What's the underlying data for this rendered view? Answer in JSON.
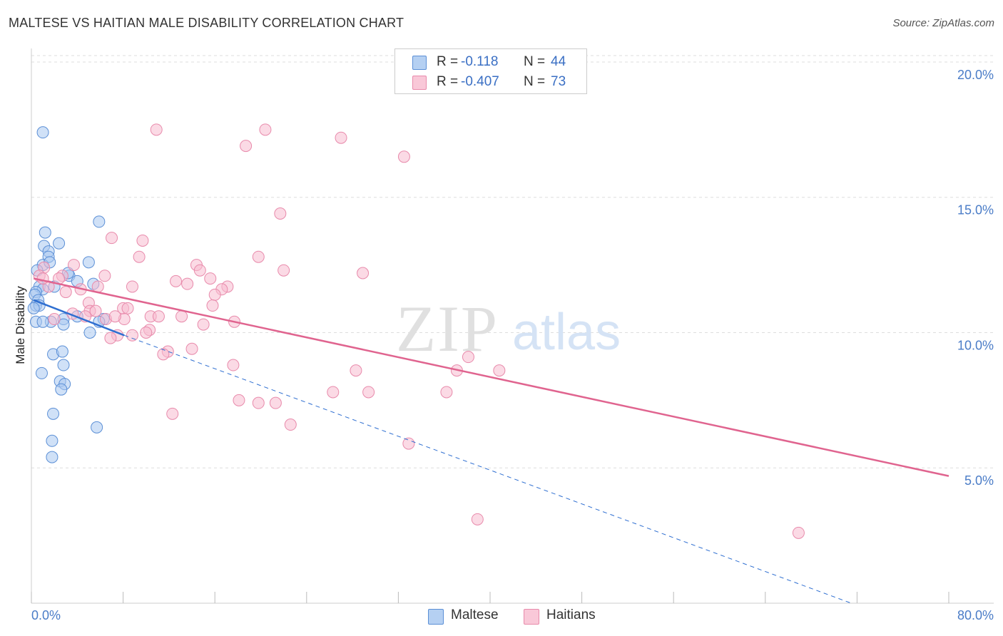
{
  "title": "MALTESE VS HAITIAN MALE DISABILITY CORRELATION CHART",
  "source": "Source: ZipAtlas.com",
  "watermark": {
    "zip": "ZIP",
    "atlas": "atlas"
  },
  "colors": {
    "maltese_fill": "#a9c8f0",
    "maltese_stroke": "#5b8fd6",
    "maltese_line": "#2f6fd1",
    "haitian_fill": "#f7bcd0",
    "haitian_stroke": "#e88aab",
    "haitian_line": "#e0648f",
    "tick_label": "#4a7cc7",
    "grid": "#dddddd"
  },
  "legend": {
    "maltese": {
      "r_label": "R =",
      "r_value": "-0.118",
      "n_label": "N =",
      "n_value": "44"
    },
    "haitian": {
      "r_label": "R =",
      "r_value": "-0.407",
      "n_label": "N =",
      "n_value": "73"
    }
  },
  "bottom_legend": {
    "maltese": "Maltese",
    "haitian": "Haitians"
  },
  "chart_data": {
    "type": "scatter",
    "title": "MALTESE VS HAITIAN MALE DISABILITY CORRELATION CHART",
    "xlabel": "",
    "ylabel": "Male Disability",
    "xlim": [
      0,
      80
    ],
    "ylim": [
      0,
      20.5
    ],
    "x_tick_labels": [
      "0.0%",
      "80.0%"
    ],
    "y_ticks": [
      5,
      10,
      15,
      20
    ],
    "y_tick_labels": [
      "5.0%",
      "10.0%",
      "15.0%",
      "20.0%"
    ],
    "grid": true,
    "series": [
      {
        "name": "Maltese",
        "points": [
          [
            1.0,
            17.4
          ],
          [
            5.9,
            14.1
          ],
          [
            1.2,
            13.7
          ],
          [
            1.1,
            13.2
          ],
          [
            2.4,
            13.3
          ],
          [
            1.5,
            13.0
          ],
          [
            1.5,
            12.8
          ],
          [
            1.0,
            12.5
          ],
          [
            5.0,
            12.6
          ],
          [
            0.5,
            12.3
          ],
          [
            1.6,
            12.6
          ],
          [
            3.3,
            12.1
          ],
          [
            4.0,
            11.9
          ],
          [
            5.4,
            11.8
          ],
          [
            0.7,
            11.7
          ],
          [
            2.0,
            11.7
          ],
          [
            1.0,
            11.6
          ],
          [
            0.4,
            11.5
          ],
          [
            0.3,
            11.4
          ],
          [
            0.6,
            11.2
          ],
          [
            0.4,
            11.0
          ],
          [
            0.7,
            11.0
          ],
          [
            0.2,
            10.9
          ],
          [
            2.8,
            10.5
          ],
          [
            6.3,
            10.5
          ],
          [
            1.7,
            10.4
          ],
          [
            5.9,
            10.4
          ],
          [
            0.4,
            10.4
          ],
          [
            1.0,
            10.4
          ],
          [
            2.8,
            10.3
          ],
          [
            5.1,
            10.0
          ],
          [
            1.9,
            9.2
          ],
          [
            2.7,
            9.3
          ],
          [
            0.9,
            8.5
          ],
          [
            2.8,
            8.8
          ],
          [
            2.5,
            8.2
          ],
          [
            2.9,
            8.1
          ],
          [
            2.6,
            7.9
          ],
          [
            1.9,
            7.0
          ],
          [
            5.7,
            6.5
          ],
          [
            1.8,
            6.0
          ],
          [
            1.8,
            5.4
          ],
          [
            4.0,
            10.6
          ],
          [
            3.2,
            12.2
          ]
        ],
        "trend": {
          "x1": 0.2,
          "y1": 11.2,
          "x2": 8.1,
          "y2": 9.9,
          "dashed_to_x": 71.5,
          "dashed_to_y": 0.0
        }
      },
      {
        "name": "Haitians",
        "points": [
          [
            10.9,
            17.5
          ],
          [
            20.4,
            17.5
          ],
          [
            27.0,
            17.2
          ],
          [
            18.7,
            16.9
          ],
          [
            32.5,
            16.5
          ],
          [
            21.7,
            14.4
          ],
          [
            7.0,
            13.5
          ],
          [
            9.7,
            13.4
          ],
          [
            9.4,
            12.8
          ],
          [
            19.8,
            12.8
          ],
          [
            1.1,
            12.4
          ],
          [
            3.7,
            12.5
          ],
          [
            14.4,
            12.5
          ],
          [
            14.7,
            12.3
          ],
          [
            22.0,
            12.3
          ],
          [
            28.9,
            12.2
          ],
          [
            0.7,
            12.1
          ],
          [
            2.7,
            12.1
          ],
          [
            6.4,
            12.1
          ],
          [
            15.6,
            12.0
          ],
          [
            12.6,
            11.9
          ],
          [
            13.6,
            11.8
          ],
          [
            1.5,
            11.7
          ],
          [
            5.8,
            11.7
          ],
          [
            8.8,
            11.7
          ],
          [
            17.1,
            11.7
          ],
          [
            16.6,
            11.6
          ],
          [
            4.3,
            11.6
          ],
          [
            3.0,
            11.5
          ],
          [
            16.0,
            11.4
          ],
          [
            5.0,
            11.1
          ],
          [
            15.8,
            11.0
          ],
          [
            8.0,
            10.9
          ],
          [
            8.4,
            10.9
          ],
          [
            5.1,
            10.8
          ],
          [
            5.6,
            10.8
          ],
          [
            3.6,
            10.7
          ],
          [
            4.7,
            10.6
          ],
          [
            10.4,
            10.6
          ],
          [
            11.1,
            10.6
          ],
          [
            13.1,
            10.6
          ],
          [
            2.0,
            10.5
          ],
          [
            6.5,
            10.5
          ],
          [
            8.1,
            10.5
          ],
          [
            17.7,
            10.4
          ],
          [
            15.0,
            10.3
          ],
          [
            10.3,
            10.1
          ],
          [
            10.0,
            10.0
          ],
          [
            8.8,
            9.9
          ],
          [
            7.5,
            9.9
          ],
          [
            6.9,
            9.8
          ],
          [
            11.9,
            9.3
          ],
          [
            11.5,
            9.2
          ],
          [
            14.0,
            9.4
          ],
          [
            38.1,
            9.1
          ],
          [
            17.6,
            8.8
          ],
          [
            28.3,
            8.6
          ],
          [
            37.1,
            8.6
          ],
          [
            40.8,
            8.6
          ],
          [
            26.3,
            7.8
          ],
          [
            29.4,
            7.8
          ],
          [
            36.2,
            7.8
          ],
          [
            18.1,
            7.5
          ],
          [
            19.8,
            7.4
          ],
          [
            21.3,
            7.4
          ],
          [
            12.3,
            7.0
          ],
          [
            22.6,
            6.6
          ],
          [
            32.9,
            5.9
          ],
          [
            38.9,
            3.1
          ],
          [
            66.9,
            2.6
          ],
          [
            1.0,
            12.0
          ],
          [
            2.4,
            12.0
          ],
          [
            7.3,
            10.6
          ]
        ],
        "trend": {
          "x1": 0.2,
          "y1": 12.0,
          "x2": 80.0,
          "y2": 4.7
        }
      }
    ]
  }
}
